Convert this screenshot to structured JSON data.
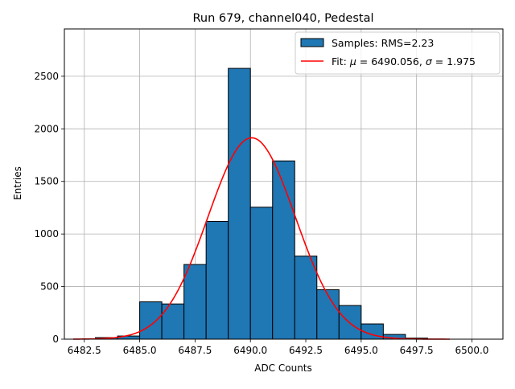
{
  "chart_data": {
    "type": "bar",
    "title": "Run 679, channel040, Pedestal",
    "xlabel": "ADC Counts",
    "ylabel": "Entries",
    "xlim": [
      6481.6,
      6501.4
    ],
    "ylim": [
      0,
      2950
    ],
    "xticks": [
      6482.5,
      6485.0,
      6487.5,
      6490.0,
      6492.5,
      6495.0,
      6497.5,
      6500.0
    ],
    "xtick_labels": [
      "6482.5",
      "6485.0",
      "6487.5",
      "6490.0",
      "6492.5",
      "6495.0",
      "6497.5",
      "6500.0"
    ],
    "yticks": [
      0,
      500,
      1000,
      1500,
      2000,
      2500
    ],
    "ytick_labels": [
      "0",
      "500",
      "1000",
      "1500",
      "2000",
      "2500"
    ],
    "grid": true,
    "legend_position": "top-right",
    "histogram": {
      "name": "Samples: RMS=2.23",
      "color": "#1f77b4",
      "edge_color": "#000000",
      "bin_edges": [
        6482,
        6483,
        6484,
        6485,
        6486,
        6487,
        6488,
        6489,
        6490,
        6491,
        6492,
        6493,
        6494,
        6495,
        6496,
        6497,
        6498,
        6499,
        6500,
        6501
      ],
      "counts": [
        0,
        15,
        30,
        355,
        335,
        710,
        1120,
        2575,
        1255,
        1695,
        790,
        470,
        320,
        145,
        45,
        10,
        0,
        0,
        0
      ]
    },
    "fit": {
      "name": "Fit: μ = 6490.056, σ = 1.975",
      "legend_prefix": "Fit: ",
      "legend_mu": "μ",
      "legend_mu_value": " = 6490.056, ",
      "legend_sigma": "σ",
      "legend_sigma_value": " = 1.975",
      "color": "#ff0000",
      "mu": 6490.056,
      "sigma": 1.975,
      "amplitude": 1915,
      "x_range": [
        6482,
        6499
      ]
    }
  }
}
